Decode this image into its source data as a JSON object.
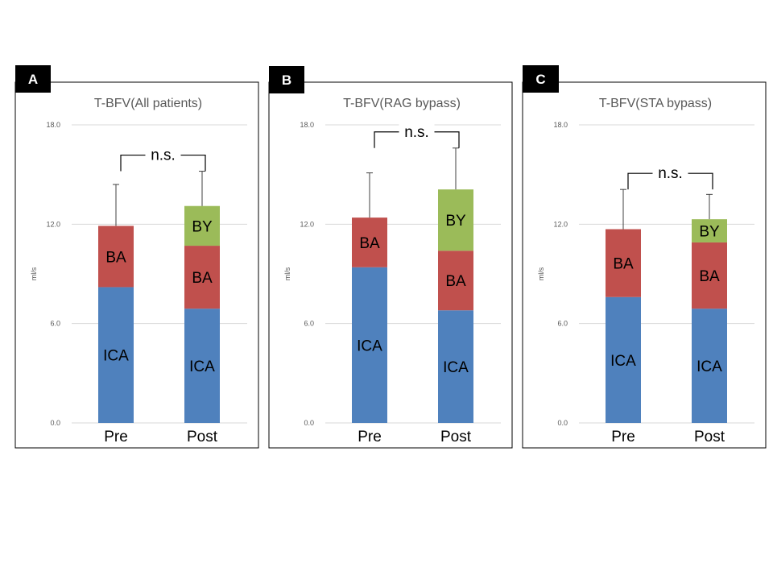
{
  "chart_data": [
    {
      "panel_label": "A",
      "type": "bar",
      "stacked": true,
      "title": "T-BFV(All patients)",
      "ylabel": "ml/s",
      "xlabel": "",
      "ylim": [
        0,
        18
      ],
      "yticks": [
        "0.0",
        "6.0",
        "12.0",
        "18.0"
      ],
      "grid": true,
      "categories": [
        "Pre",
        "Post"
      ],
      "series": [
        {
          "name": "ICA",
          "color": "#4f81bd",
          "values": [
            8.2,
            6.9
          ]
        },
        {
          "name": "BA",
          "color": "#c0504d",
          "values": [
            3.7,
            3.8
          ]
        },
        {
          "name": "BY",
          "color": "#9bbb59",
          "values": [
            0,
            2.4
          ]
        }
      ],
      "errors": [
        2.5,
        2.1
      ],
      "annotation": "n.s."
    },
    {
      "panel_label": "B",
      "type": "bar",
      "stacked": true,
      "title": "T-BFV(RAG bypass)",
      "ylabel": "ml/s",
      "xlabel": "",
      "ylim": [
        0,
        18
      ],
      "yticks": [
        "0.0",
        "6.0",
        "12.0",
        "18.0"
      ],
      "grid": true,
      "categories": [
        "Pre",
        "Post"
      ],
      "series": [
        {
          "name": "ICA",
          "color": "#4f81bd",
          "values": [
            9.4,
            6.8
          ]
        },
        {
          "name": "BA",
          "color": "#c0504d",
          "values": [
            3.0,
            3.6
          ]
        },
        {
          "name": "BY",
          "color": "#9bbb59",
          "values": [
            0,
            3.7
          ]
        }
      ],
      "errors": [
        2.7,
        2.5
      ],
      "annotation": "n.s."
    },
    {
      "panel_label": "C",
      "type": "bar",
      "stacked": true,
      "title": "T-BFV(STA bypass)",
      "ylabel": "ml/s",
      "xlabel": "",
      "ylim": [
        0,
        18
      ],
      "yticks": [
        "0.0",
        "6.0",
        "12.0",
        "18.0"
      ],
      "grid": true,
      "categories": [
        "Pre",
        "Post"
      ],
      "series": [
        {
          "name": "ICA",
          "color": "#4f81bd",
          "values": [
            7.6,
            6.9
          ]
        },
        {
          "name": "BA",
          "color": "#c0504d",
          "values": [
            4.1,
            4.0
          ]
        },
        {
          "name": "BY",
          "color": "#9bbb59",
          "values": [
            0,
            1.4
          ]
        }
      ],
      "errors": [
        2.4,
        1.5
      ],
      "annotation": "n.s."
    }
  ]
}
